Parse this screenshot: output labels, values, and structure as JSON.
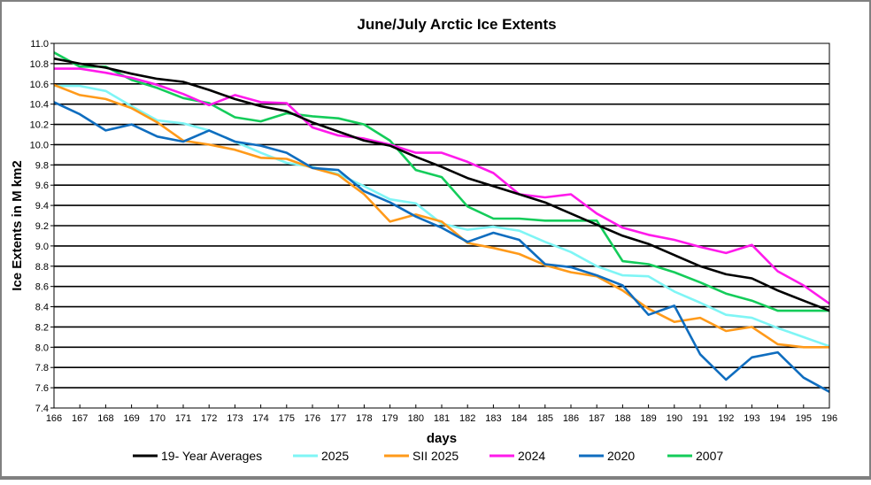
{
  "chart_data": {
    "type": "line",
    "title": "June/July  Arctic Ice Extents",
    "xlabel": "days",
    "ylabel": "Ice Extents in M km2",
    "xlim": [
      166,
      196
    ],
    "ylim": [
      7.4,
      11.0
    ],
    "y_ticks": [
      "11.0",
      "10.8",
      "10.6",
      "10.4",
      "10.2",
      "10.0",
      "9.8",
      "9.6",
      "9.4",
      "9.2",
      "9.0",
      "8.8",
      "8.6",
      "8.4",
      "8.2",
      "8.0",
      "7.8",
      "7.6",
      "7.4"
    ],
    "x_ticks": [
      "166",
      "167",
      "168",
      "169",
      "170",
      "171",
      "172",
      "173",
      "174",
      "175",
      "176",
      "177",
      "178",
      "179",
      "180",
      "181",
      "182",
      "183",
      "184",
      "185",
      "186",
      "187",
      "188",
      "189",
      "190",
      "191",
      "192",
      "193",
      "194",
      "195",
      "196"
    ],
    "grid": "horizontal",
    "legend_position": "bottom",
    "x": [
      166,
      167,
      168,
      169,
      170,
      171,
      172,
      173,
      174,
      175,
      176,
      177,
      178,
      179,
      180,
      181,
      182,
      183,
      184,
      185,
      186,
      187,
      188,
      189,
      190,
      191,
      192,
      193,
      194,
      195,
      196
    ],
    "series": [
      {
        "name": "19- Year Averages",
        "color": "#000000",
        "values": [
          10.85,
          10.8,
          10.76,
          10.7,
          10.65,
          10.62,
          10.54,
          10.45,
          10.38,
          10.33,
          10.22,
          10.13,
          10.04,
          9.99,
          9.88,
          9.78,
          9.67,
          9.59,
          9.51,
          9.43,
          9.32,
          9.21,
          9.1,
          9.02,
          8.91,
          8.8,
          8.72,
          8.68,
          8.56,
          8.46,
          8.36
        ]
      },
      {
        "name": "2025",
        "color": "#7FF5F5",
        "values": [
          10.58,
          10.58,
          10.53,
          10.38,
          10.24,
          10.21,
          10.14,
          10.03,
          9.92,
          9.82,
          9.78,
          9.71,
          9.59,
          9.46,
          9.42,
          9.22,
          9.16,
          9.19,
          9.15,
          9.04,
          8.94,
          8.8,
          8.71,
          8.7,
          8.55,
          8.44,
          8.32,
          8.29,
          8.19,
          8.1,
          8.01
        ]
      },
      {
        "name": "SII 2025",
        "color": "#FF9A1A",
        "values": [
          10.59,
          10.49,
          10.45,
          10.36,
          10.22,
          10.04,
          10.0,
          9.95,
          9.87,
          9.86,
          9.77,
          9.7,
          9.51,
          9.24,
          9.31,
          9.24,
          9.03,
          8.98,
          8.92,
          8.81,
          8.74,
          8.7,
          8.56,
          8.38,
          8.25,
          8.29,
          8.16,
          8.2,
          8.03,
          8.0,
          8.0
        ]
      },
      {
        "name": "2024",
        "color": "#FF1AEB",
        "values": [
          10.75,
          10.75,
          10.71,
          10.66,
          10.59,
          10.5,
          10.39,
          10.49,
          10.42,
          10.41,
          10.17,
          10.09,
          10.06,
          10.0,
          9.92,
          9.92,
          9.83,
          9.72,
          9.51,
          9.48,
          9.51,
          9.32,
          9.18,
          9.11,
          9.06,
          8.99,
          8.93,
          9.01,
          8.75,
          8.61,
          8.43
        ]
      },
      {
        "name": "2020",
        "color": "#0F6DBF",
        "values": [
          10.42,
          10.3,
          10.14,
          10.2,
          10.08,
          10.03,
          10.14,
          10.03,
          9.99,
          9.92,
          9.77,
          9.75,
          9.54,
          9.43,
          9.29,
          9.18,
          9.04,
          9.13,
          9.06,
          8.82,
          8.79,
          8.71,
          8.61,
          8.32,
          8.41,
          7.93,
          7.68,
          7.9,
          7.95,
          7.7,
          7.56
        ]
      },
      {
        "name": "2007",
        "color": "#14CC5A",
        "values": [
          10.91,
          10.77,
          10.77,
          10.64,
          10.56,
          10.46,
          10.41,
          10.27,
          10.23,
          10.31,
          10.28,
          10.26,
          10.2,
          10.04,
          9.75,
          9.68,
          9.39,
          9.27,
          9.27,
          9.25,
          9.25,
          9.25,
          8.85,
          8.82,
          8.74,
          8.64,
          8.53,
          8.46,
          8.36,
          8.36,
          8.36
        ]
      }
    ]
  }
}
